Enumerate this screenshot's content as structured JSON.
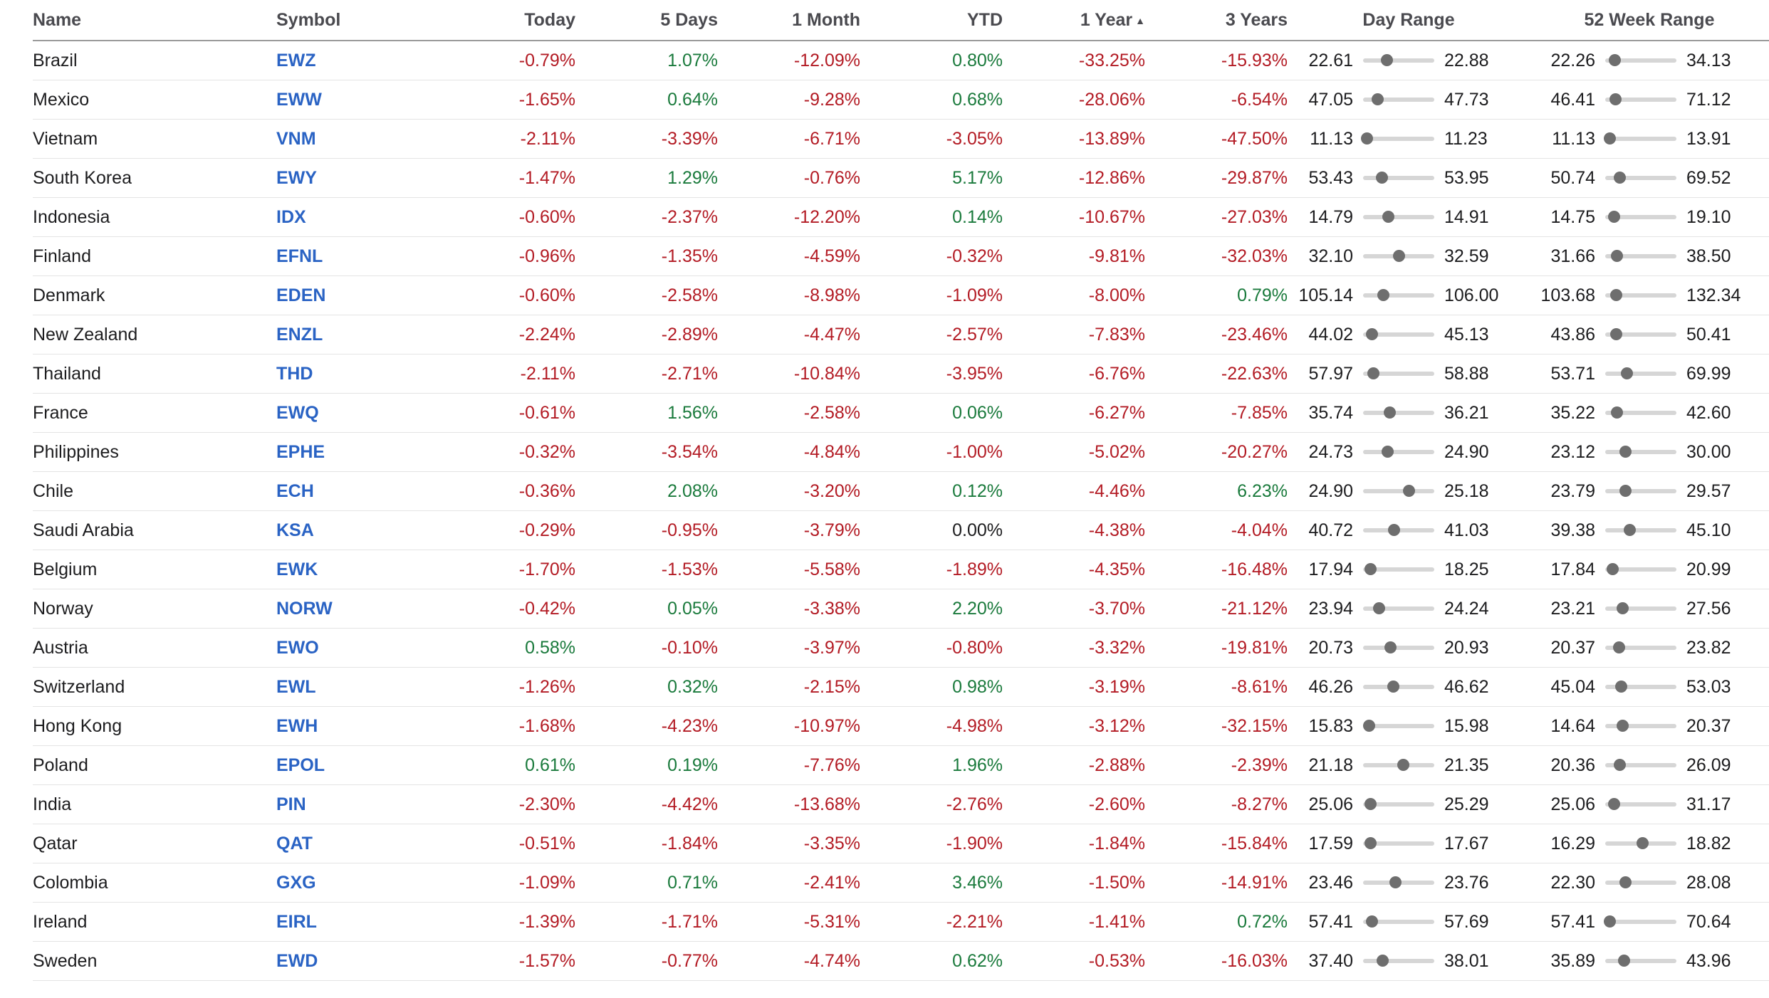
{
  "header": {
    "name": "Name",
    "symbol": "Symbol",
    "today": "Today",
    "days5": "5 Days",
    "month1": "1 Month",
    "ytd": "YTD",
    "year1": "1 Year",
    "sort_glyph": "▲",
    "years3": "3 Years",
    "day_range": "Day Range",
    "week52": "52 Week Range"
  },
  "colors": {
    "negative": "#b31b24",
    "positive": "#1a7a3c",
    "symbol": "#2a63c4"
  },
  "rows": [
    {
      "name": "Brazil",
      "symbol": "EWZ",
      "today": "-0.79%",
      "d5": "1.07%",
      "m1": "-12.09%",
      "ytd": "0.80%",
      "y1": "-33.25%",
      "y3": "-15.93%",
      "day_lo": "22.61",
      "day_hi": "22.88",
      "day_pos": 0.33,
      "wk_lo": "22.26",
      "wk_hi": "34.13",
      "wk_pos": 0.13
    },
    {
      "name": "Mexico",
      "symbol": "EWW",
      "today": "-1.65%",
      "d5": "0.64%",
      "m1": "-9.28%",
      "ytd": "0.68%",
      "y1": "-28.06%",
      "y3": "-6.54%",
      "day_lo": "47.05",
      "day_hi": "47.73",
      "day_pos": 0.2,
      "wk_lo": "46.41",
      "wk_hi": "71.12",
      "wk_pos": 0.14
    },
    {
      "name": "Vietnam",
      "symbol": "VNM",
      "today": "-2.11%",
      "d5": "-3.39%",
      "m1": "-6.71%",
      "ytd": "-3.05%",
      "y1": "-13.89%",
      "y3": "-47.50%",
      "day_lo": "11.13",
      "day_hi": "11.23",
      "day_pos": 0.05,
      "wk_lo": "11.13",
      "wk_hi": "13.91",
      "wk_pos": 0.06
    },
    {
      "name": "South Korea",
      "symbol": "EWY",
      "today": "-1.47%",
      "d5": "1.29%",
      "m1": "-0.76%",
      "ytd": "5.17%",
      "y1": "-12.86%",
      "y3": "-29.87%",
      "day_lo": "53.43",
      "day_hi": "53.95",
      "day_pos": 0.26,
      "wk_lo": "50.74",
      "wk_hi": "69.52",
      "wk_pos": 0.2
    },
    {
      "name": "Indonesia",
      "symbol": "IDX",
      "today": "-0.60%",
      "d5": "-2.37%",
      "m1": "-12.20%",
      "ytd": "0.14%",
      "y1": "-10.67%",
      "y3": "-27.03%",
      "day_lo": "14.79",
      "day_hi": "14.91",
      "day_pos": 0.35,
      "wk_lo": "14.75",
      "wk_hi": "19.10",
      "wk_pos": 0.12
    },
    {
      "name": "Finland",
      "symbol": "EFNL",
      "today": "-0.96%",
      "d5": "-1.35%",
      "m1": "-4.59%",
      "ytd": "-0.32%",
      "y1": "-9.81%",
      "y3": "-32.03%",
      "day_lo": "32.10",
      "day_hi": "32.59",
      "day_pos": 0.5,
      "wk_lo": "31.66",
      "wk_hi": "38.50",
      "wk_pos": 0.16
    },
    {
      "name": "Denmark",
      "symbol": "EDEN",
      "today": "-0.60%",
      "d5": "-2.58%",
      "m1": "-8.98%",
      "ytd": "-1.09%",
      "y1": "-8.00%",
      "y3": "0.79%",
      "day_lo": "105.14",
      "day_hi": "106.00",
      "day_pos": 0.28,
      "wk_lo": "103.68",
      "wk_hi": "132.34",
      "wk_pos": 0.15
    },
    {
      "name": "New Zealand",
      "symbol": "ENZL",
      "today": "-2.24%",
      "d5": "-2.89%",
      "m1": "-4.47%",
      "ytd": "-2.57%",
      "y1": "-7.83%",
      "y3": "-23.46%",
      "day_lo": "44.02",
      "day_hi": "45.13",
      "day_pos": 0.12,
      "wk_lo": "43.86",
      "wk_hi": "50.41",
      "wk_pos": 0.15
    },
    {
      "name": "Thailand",
      "symbol": "THD",
      "today": "-2.11%",
      "d5": "-2.71%",
      "m1": "-10.84%",
      "ytd": "-3.95%",
      "y1": "-6.76%",
      "y3": "-22.63%",
      "day_lo": "57.97",
      "day_hi": "58.88",
      "day_pos": 0.14,
      "wk_lo": "53.71",
      "wk_hi": "69.99",
      "wk_pos": 0.3
    },
    {
      "name": "France",
      "symbol": "EWQ",
      "today": "-0.61%",
      "d5": "1.56%",
      "m1": "-2.58%",
      "ytd": "0.06%",
      "y1": "-6.27%",
      "y3": "-7.85%",
      "day_lo": "35.74",
      "day_hi": "36.21",
      "day_pos": 0.37,
      "wk_lo": "35.22",
      "wk_hi": "42.60",
      "wk_pos": 0.16
    },
    {
      "name": "Philippines",
      "symbol": "EPHE",
      "today": "-0.32%",
      "d5": "-3.54%",
      "m1": "-4.84%",
      "ytd": "-1.00%",
      "y1": "-5.02%",
      "y3": "-20.27%",
      "day_lo": "24.73",
      "day_hi": "24.90",
      "day_pos": 0.34,
      "wk_lo": "23.12",
      "wk_hi": "30.00",
      "wk_pos": 0.28
    },
    {
      "name": "Chile",
      "symbol": "ECH",
      "today": "-0.36%",
      "d5": "2.08%",
      "m1": "-3.20%",
      "ytd": "0.12%",
      "y1": "-4.46%",
      "y3": "6.23%",
      "day_lo": "24.90",
      "day_hi": "25.18",
      "day_pos": 0.64,
      "wk_lo": "23.79",
      "wk_hi": "29.57",
      "wk_pos": 0.28
    },
    {
      "name": "Saudi Arabia",
      "symbol": "KSA",
      "today": "-0.29%",
      "d5": "-0.95%",
      "m1": "-3.79%",
      "ytd": "0.00%",
      "y1": "-4.38%",
      "y3": "-4.04%",
      "day_lo": "40.72",
      "day_hi": "41.03",
      "day_pos": 0.43,
      "wk_lo": "39.38",
      "wk_hi": "45.10",
      "wk_pos": 0.34
    },
    {
      "name": "Belgium",
      "symbol": "EWK",
      "today": "-1.70%",
      "d5": "-1.53%",
      "m1": "-5.58%",
      "ytd": "-1.89%",
      "y1": "-4.35%",
      "y3": "-16.48%",
      "day_lo": "17.94",
      "day_hi": "18.25",
      "day_pos": 0.1,
      "wk_lo": "17.84",
      "wk_hi": "20.99",
      "wk_pos": 0.1
    },
    {
      "name": "Norway",
      "symbol": "NORW",
      "today": "-0.42%",
      "d5": "0.05%",
      "m1": "-3.38%",
      "ytd": "2.20%",
      "y1": "-3.70%",
      "y3": "-21.12%",
      "day_lo": "23.94",
      "day_hi": "24.24",
      "day_pos": 0.22,
      "wk_lo": "23.21",
      "wk_hi": "27.56",
      "wk_pos": 0.24
    },
    {
      "name": "Austria",
      "symbol": "EWO",
      "today": "0.58%",
      "d5": "-0.10%",
      "m1": "-3.97%",
      "ytd": "-0.80%",
      "y1": "-3.32%",
      "y3": "-19.81%",
      "day_lo": "20.73",
      "day_hi": "20.93",
      "day_pos": 0.38,
      "wk_lo": "20.37",
      "wk_hi": "23.82",
      "wk_pos": 0.19
    },
    {
      "name": "Switzerland",
      "symbol": "EWL",
      "today": "-1.26%",
      "d5": "0.32%",
      "m1": "-2.15%",
      "ytd": "0.98%",
      "y1": "-3.19%",
      "y3": "-8.61%",
      "day_lo": "46.26",
      "day_hi": "46.62",
      "day_pos": 0.42,
      "wk_lo": "45.04",
      "wk_hi": "53.03",
      "wk_pos": 0.22
    },
    {
      "name": "Hong Kong",
      "symbol": "EWH",
      "today": "-1.68%",
      "d5": "-4.23%",
      "m1": "-10.97%",
      "ytd": "-4.98%",
      "y1": "-3.12%",
      "y3": "-32.15%",
      "day_lo": "15.83",
      "day_hi": "15.98",
      "day_pos": 0.08,
      "wk_lo": "14.64",
      "wk_hi": "20.37",
      "wk_pos": 0.24
    },
    {
      "name": "Poland",
      "symbol": "EPOL",
      "today": "0.61%",
      "d5": "0.19%",
      "m1": "-7.76%",
      "ytd": "1.96%",
      "y1": "-2.88%",
      "y3": "-2.39%",
      "day_lo": "21.18",
      "day_hi": "21.35",
      "day_pos": 0.56,
      "wk_lo": "20.36",
      "wk_hi": "26.09",
      "wk_pos": 0.2
    },
    {
      "name": "India",
      "symbol": "PIN",
      "today": "-2.30%",
      "d5": "-4.42%",
      "m1": "-13.68%",
      "ytd": "-2.76%",
      "y1": "-2.60%",
      "y3": "-8.27%",
      "day_lo": "25.06",
      "day_hi": "25.29",
      "day_pos": 0.1,
      "wk_lo": "25.06",
      "wk_hi": "31.17",
      "wk_pos": 0.12
    },
    {
      "name": "Qatar",
      "symbol": "QAT",
      "today": "-0.51%",
      "d5": "-1.84%",
      "m1": "-3.35%",
      "ytd": "-1.90%",
      "y1": "-1.84%",
      "y3": "-15.84%",
      "day_lo": "17.59",
      "day_hi": "17.67",
      "day_pos": 0.1,
      "wk_lo": "16.29",
      "wk_hi": "18.82",
      "wk_pos": 0.52
    },
    {
      "name": "Colombia",
      "symbol": "GXG",
      "today": "-1.09%",
      "d5": "0.71%",
      "m1": "-2.41%",
      "ytd": "3.46%",
      "y1": "-1.50%",
      "y3": "-14.91%",
      "day_lo": "23.46",
      "day_hi": "23.76",
      "day_pos": 0.45,
      "wk_lo": "22.30",
      "wk_hi": "28.08",
      "wk_pos": 0.28
    },
    {
      "name": "Ireland",
      "symbol": "EIRL",
      "today": "-1.39%",
      "d5": "-1.71%",
      "m1": "-5.31%",
      "ytd": "-2.21%",
      "y1": "-1.41%",
      "y3": "0.72%",
      "day_lo": "57.41",
      "day_hi": "57.69",
      "day_pos": 0.12,
      "wk_lo": "57.41",
      "wk_hi": "70.64",
      "wk_pos": 0.06
    },
    {
      "name": "Sweden",
      "symbol": "EWD",
      "today": "-1.57%",
      "d5": "-0.77%",
      "m1": "-4.74%",
      "ytd": "0.62%",
      "y1": "-0.53%",
      "y3": "-16.03%",
      "day_lo": "37.40",
      "day_hi": "38.01",
      "day_pos": 0.27,
      "wk_lo": "35.89",
      "wk_hi": "43.96",
      "wk_pos": 0.26
    }
  ]
}
